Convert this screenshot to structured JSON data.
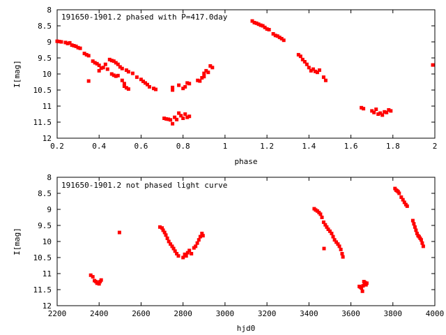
{
  "colors": {
    "points": "#ff0000",
    "axes": "#000000",
    "background": "#ffffff"
  },
  "chart_data": [
    {
      "type": "scatter",
      "title": "191650-1901.2 phased with P=417.0day",
      "xlabel": "phase",
      "ylabel": "I[mag]",
      "xlim": [
        0.2,
        2
      ],
      "ylim": [
        12,
        8
      ],
      "y_inverted": true,
      "xticks": [
        0.2,
        0.4,
        0.6,
        0.8,
        1,
        1.2,
        1.4,
        1.6,
        1.8,
        2
      ],
      "xtick_labels": [
        "0.2",
        "0.4",
        "0.6",
        "0.8",
        "1",
        "1.2",
        "1.4",
        "1.6",
        "1.8",
        "2"
      ],
      "yticks": [
        8,
        8.5,
        9,
        9.5,
        10,
        10.5,
        11,
        11.5,
        12
      ],
      "ytick_labels": [
        "8",
        "8.5",
        "9",
        "9.5",
        "10",
        "10.5",
        "11",
        "11.5",
        "12"
      ],
      "grid": false,
      "series": [
        {
          "points": [
            [
              0.2,
              8.98
            ],
            [
              0.21,
              8.99
            ],
            [
              0.22,
              9.0
            ],
            [
              0.24,
              9.02
            ],
            [
              0.25,
              9.05
            ],
            [
              0.26,
              9.03
            ],
            [
              0.27,
              9.1
            ],
            [
              0.28,
              9.12
            ],
            [
              0.29,
              9.14
            ],
            [
              0.3,
              9.18
            ],
            [
              0.31,
              9.2
            ],
            [
              0.33,
              9.36
            ],
            [
              0.34,
              9.4
            ],
            [
              0.35,
              9.43
            ],
            [
              0.35,
              10.22
            ],
            [
              0.37,
              9.6
            ],
            [
              0.38,
              9.65
            ],
            [
              0.39,
              9.68
            ],
            [
              0.4,
              9.73
            ],
            [
              0.4,
              9.9
            ],
            [
              0.41,
              9.82
            ],
            [
              0.42,
              9.8
            ],
            [
              0.43,
              9.7
            ],
            [
              0.44,
              9.85
            ],
            [
              0.45,
              9.55
            ],
            [
              0.46,
              9.58
            ],
            [
              0.47,
              9.6
            ],
            [
              0.48,
              9.65
            ],
            [
              0.46,
              10.0
            ],
            [
              0.47,
              10.04
            ],
            [
              0.48,
              10.07
            ],
            [
              0.49,
              10.05
            ],
            [
              0.49,
              9.7
            ],
            [
              0.5,
              9.78
            ],
            [
              0.51,
              9.83
            ],
            [
              0.51,
              10.2
            ],
            [
              0.52,
              10.3
            ],
            [
              0.52,
              10.38
            ],
            [
              0.53,
              10.43
            ],
            [
              0.54,
              10.47
            ],
            [
              0.53,
              9.88
            ],
            [
              0.54,
              9.93
            ],
            [
              0.56,
              9.98
            ],
            [
              0.58,
              10.1
            ],
            [
              0.6,
              10.17
            ],
            [
              0.61,
              10.23
            ],
            [
              0.62,
              10.28
            ],
            [
              0.63,
              10.33
            ],
            [
              0.64,
              10.4
            ],
            [
              0.66,
              10.45
            ],
            [
              0.67,
              10.48
            ],
            [
              0.71,
              11.38
            ],
            [
              0.72,
              11.4
            ],
            [
              0.73,
              11.41
            ],
            [
              0.74,
              11.43
            ],
            [
              0.75,
              11.55
            ],
            [
              0.76,
              11.35
            ],
            [
              0.77,
              11.42
            ],
            [
              0.78,
              11.22
            ],
            [
              0.79,
              11.3
            ],
            [
              0.8,
              11.38
            ],
            [
              0.81,
              11.25
            ],
            [
              0.82,
              11.35
            ],
            [
              0.83,
              11.32
            ],
            [
              0.75,
              10.42
            ],
            [
              0.75,
              10.5
            ],
            [
              0.78,
              10.35
            ],
            [
              0.8,
              10.45
            ],
            [
              0.81,
              10.4
            ],
            [
              0.82,
              10.28
            ],
            [
              0.83,
              10.3
            ],
            [
              0.87,
              10.2
            ],
            [
              0.88,
              10.22
            ],
            [
              0.89,
              10.12
            ],
            [
              0.9,
              10.08
            ],
            [
              0.9,
              9.98
            ],
            [
              0.91,
              9.9
            ],
            [
              0.92,
              9.95
            ],
            [
              0.93,
              9.75
            ],
            [
              0.94,
              9.8
            ],
            [
              1.13,
              8.35
            ],
            [
              1.14,
              8.4
            ],
            [
              1.15,
              8.42
            ],
            [
              1.16,
              8.45
            ],
            [
              1.17,
              8.48
            ],
            [
              1.18,
              8.5
            ],
            [
              1.19,
              8.55
            ],
            [
              1.2,
              8.6
            ],
            [
              1.21,
              8.62
            ],
            [
              1.23,
              8.75
            ],
            [
              1.24,
              8.8
            ],
            [
              1.25,
              8.82
            ],
            [
              1.26,
              8.86
            ],
            [
              1.27,
              8.9
            ],
            [
              1.28,
              8.95
            ],
            [
              1.35,
              9.4
            ],
            [
              1.36,
              9.45
            ],
            [
              1.37,
              9.55
            ],
            [
              1.38,
              9.62
            ],
            [
              1.39,
              9.7
            ],
            [
              1.4,
              9.8
            ],
            [
              1.41,
              9.9
            ],
            [
              1.42,
              9.85
            ],
            [
              1.43,
              9.92
            ],
            [
              1.44,
              9.95
            ],
            [
              1.45,
              9.88
            ],
            [
              1.47,
              10.1
            ],
            [
              1.48,
              10.2
            ],
            [
              1.65,
              11.05
            ],
            [
              1.66,
              11.08
            ],
            [
              1.7,
              11.15
            ],
            [
              1.71,
              11.2
            ],
            [
              1.72,
              11.1
            ],
            [
              1.73,
              11.25
            ],
            [
              1.74,
              11.22
            ],
            [
              1.75,
              11.28
            ],
            [
              1.76,
              11.18
            ],
            [
              1.77,
              11.2
            ],
            [
              1.78,
              11.12
            ],
            [
              1.79,
              11.15
            ],
            [
              1.99,
              9.72
            ]
          ]
        }
      ]
    },
    {
      "type": "scatter",
      "title": "191650-1901.2 not phased light curve",
      "xlabel": "hjd0",
      "ylabel": "I[mag]",
      "xlim": [
        2200,
        4000
      ],
      "ylim": [
        12,
        8
      ],
      "y_inverted": true,
      "xticks": [
        2200,
        2400,
        2600,
        2800,
        3000,
        3200,
        3400,
        3600,
        3800,
        4000
      ],
      "xtick_labels": [
        "2200",
        "2400",
        "2600",
        "2800",
        "3000",
        "3200",
        "3400",
        "3600",
        "3800",
        "4000"
      ],
      "yticks": [
        8,
        8.5,
        9,
        9.5,
        10,
        10.5,
        11,
        11.5,
        12
      ],
      "ytick_labels": [
        "8",
        "8.5",
        "9",
        "9.5",
        "10",
        "10.5",
        "11",
        "11.5",
        "12"
      ],
      "grid": false,
      "series": [
        {
          "points": [
            [
              2360,
              11.05
            ],
            [
              2370,
              11.1
            ],
            [
              2378,
              11.22
            ],
            [
              2385,
              11.25
            ],
            [
              2390,
              11.3
            ],
            [
              2395,
              11.28
            ],
            [
              2400,
              11.32
            ],
            [
              2405,
              11.25
            ],
            [
              2410,
              11.2
            ],
            [
              2497,
              9.72
            ],
            [
              2690,
              9.55
            ],
            [
              2700,
              9.58
            ],
            [
              2705,
              9.65
            ],
            [
              2712,
              9.72
            ],
            [
              2718,
              9.8
            ],
            [
              2725,
              9.9
            ],
            [
              2732,
              10.0
            ],
            [
              2740,
              10.08
            ],
            [
              2748,
              10.15
            ],
            [
              2755,
              10.22
            ],
            [
              2762,
              10.3
            ],
            [
              2770,
              10.38
            ],
            [
              2778,
              10.45
            ],
            [
              2800,
              10.5
            ],
            [
              2808,
              10.4
            ],
            [
              2815,
              10.45
            ],
            [
              2822,
              10.35
            ],
            [
              2830,
              10.28
            ],
            [
              2840,
              10.38
            ],
            [
              2852,
              10.2
            ],
            [
              2860,
              10.15
            ],
            [
              2868,
              10.05
            ],
            [
              2875,
              9.95
            ],
            [
              2882,
              9.85
            ],
            [
              2890,
              9.75
            ],
            [
              2895,
              9.82
            ],
            [
              3425,
              8.98
            ],
            [
              3432,
              9.02
            ],
            [
              3440,
              9.05
            ],
            [
              3448,
              9.1
            ],
            [
              3455,
              9.15
            ],
            [
              3462,
              9.25
            ],
            [
              3470,
              9.4
            ],
            [
              3478,
              9.48
            ],
            [
              3485,
              9.55
            ],
            [
              3492,
              9.62
            ],
            [
              3500,
              9.68
            ],
            [
              3508,
              9.75
            ],
            [
              3515,
              9.85
            ],
            [
              3522,
              9.95
            ],
            [
              3530,
              10.02
            ],
            [
              3538,
              10.08
            ],
            [
              3545,
              10.15
            ],
            [
              3552,
              10.25
            ],
            [
              3558,
              10.38
            ],
            [
              3562,
              10.48
            ],
            [
              3472,
              10.22
            ],
            [
              3640,
              11.4
            ],
            [
              3645,
              11.42
            ],
            [
              3650,
              11.45
            ],
            [
              3655,
              11.55
            ],
            [
              3658,
              11.38
            ],
            [
              3662,
              11.25
            ],
            [
              3665,
              11.3
            ],
            [
              3668,
              11.28
            ],
            [
              3672,
              11.35
            ],
            [
              3676,
              11.3
            ],
            [
              3810,
              8.35
            ],
            [
              3815,
              8.4
            ],
            [
              3820,
              8.42
            ],
            [
              3825,
              8.45
            ],
            [
              3830,
              8.5
            ],
            [
              3840,
              8.62
            ],
            [
              3848,
              8.7
            ],
            [
              3855,
              8.78
            ],
            [
              3862,
              8.85
            ],
            [
              3868,
              8.9
            ],
            [
              3895,
              9.35
            ],
            [
              3900,
              9.45
            ],
            [
              3905,
              9.55
            ],
            [
              3910,
              9.65
            ],
            [
              3915,
              9.75
            ],
            [
              3920,
              9.82
            ],
            [
              3925,
              9.85
            ],
            [
              3930,
              9.9
            ],
            [
              3935,
              9.95
            ],
            [
              3940,
              10.05
            ],
            [
              3945,
              10.15
            ]
          ]
        }
      ]
    }
  ]
}
